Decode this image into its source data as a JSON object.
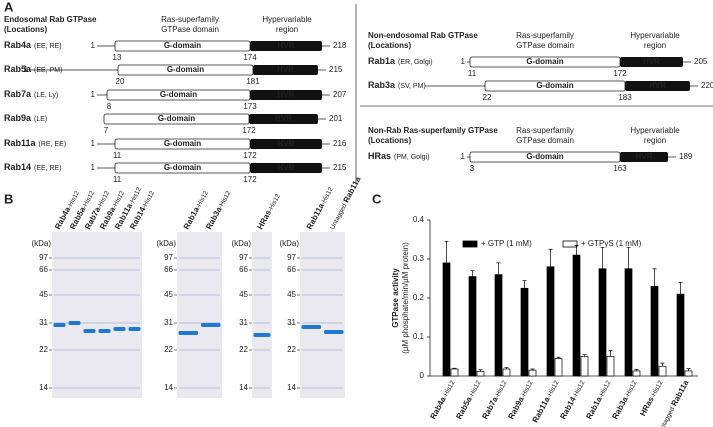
{
  "panel_a": {
    "letter": "A",
    "groups": [
      {
        "title": "Endosomal Rab GTPase",
        "subtitle": "(Locations)",
        "domain_header": [
          "Ras-superfamily",
          "GTPase domain"
        ],
        "hvr_header": [
          "Hypervariable",
          "region"
        ],
        "rows": [
          {
            "name": "Rab4a",
            "locations": "(EE, RE)",
            "start": 1,
            "g_start": 13,
            "g_end": 174,
            "end": 218,
            "g_label": "G-domain",
            "hvr_label": "HVR"
          },
          {
            "name": "Rab5a",
            "locations": "(EE, PM)",
            "start": 1,
            "g_start": 20,
            "g_end": 181,
            "end": 215,
            "g_label": "G-domain",
            "hvr_label": "HVR"
          },
          {
            "name": "Rab7a",
            "locations": "(LE, Ly)",
            "start": 1,
            "g_start": 8,
            "g_end": 173,
            "end": 207,
            "g_label": "G-domain",
            "hvr_label": "HVR"
          },
          {
            "name": "Rab9a",
            "locations": "(LE)",
            "g_start": 7,
            "g_end": 172,
            "end": 201,
            "g_label": "G-domain",
            "hvr_label": "HVR"
          },
          {
            "name": "Rab11a",
            "locations": "(RE, EE)",
            "start": 1,
            "g_start": 11,
            "g_end": 172,
            "end": 216,
            "g_label": "G-domain",
            "hvr_label": "HVR"
          },
          {
            "name": "Rab14",
            "locations": "(EE, RE)",
            "start": 1,
            "g_start": 11,
            "g_end": 172,
            "end": 215,
            "g_label": "G-domain",
            "hvr_label": "HVR"
          }
        ]
      },
      {
        "title": "Non-endosomal Rab GTPase",
        "subtitle": "(Locations)",
        "domain_header": [
          "Ras-superfamily",
          "GTPase domain"
        ],
        "hvr_header": [
          "Hypervariable",
          "region"
        ],
        "rows": [
          {
            "name": "Rab1a",
            "locations": "(ER, Golgi)",
            "start": 1,
            "g_start": 11,
            "g_end": 172,
            "end": 205,
            "g_label": "G-domain",
            "hvr_label": "HVR"
          },
          {
            "name": "Rab3a",
            "locations": "(SV, PM)",
            "g_start": 22,
            "g_end": 183,
            "end": 220,
            "g_label": "G-domain",
            "hvr_label": "HVR"
          }
        ]
      },
      {
        "title": "Non-Rab Ras-superfamily GTPase",
        "subtitle": "(Locations)",
        "domain_header": [
          "Ras-superfamily",
          "GTPase domain"
        ],
        "hvr_header": [
          "Hypervariable",
          "region"
        ],
        "rows": [
          {
            "name": "HRas",
            "locations": "(PM, Golgi)",
            "start": 1,
            "g_start": 3,
            "g_end": 163,
            "end": 189,
            "g_label": "G-domain",
            "hvr_label": "HVR"
          }
        ]
      }
    ]
  },
  "panel_b": {
    "letter": "B",
    "unit": "(kDa)",
    "markers": [
      97,
      66,
      45,
      31,
      22,
      14
    ],
    "gels": [
      {
        "lanes": [
          {
            "name": "Rab4a",
            "tag": "-His12"
          },
          {
            "name": "Rab5a",
            "tag": "-His12"
          },
          {
            "name": "Rab7a",
            "tag": "-His12"
          },
          {
            "name": "Rab9a",
            "tag": "-His12"
          },
          {
            "name": "Rab11a",
            "tag": "-His12"
          },
          {
            "name": "Rab14",
            "tag": "-His12"
          }
        ]
      },
      {
        "lanes": [
          {
            "name": "Rab1a",
            "tag": "-His12"
          },
          {
            "name": "Rab3a",
            "tag": "-His12"
          }
        ]
      },
      {
        "lanes": [
          {
            "name": "HRas",
            "tag": "-His12"
          }
        ]
      },
      {
        "lanes": [
          {
            "name": "Rab11a",
            "tag": "-His12"
          },
          {
            "prefix": "Untagged",
            "name": "Rab11a"
          }
        ]
      }
    ]
  },
  "chart_data": {
    "type": "bar",
    "letter": "C",
    "ylabel": "GTPase activity",
    "ylabel_sub": "(μM phosphate/min/μM protein)",
    "categories": [
      {
        "name": "Rab4a",
        "tag": "-His12"
      },
      {
        "name": "Rab5a",
        "tag": "-His12"
      },
      {
        "name": "Rab7a",
        "tag": "-His12"
      },
      {
        "name": "Rab9a",
        "tag": "-His12"
      },
      {
        "name": "Rab11a",
        "tag": "-His12"
      },
      {
        "name": "Rab14",
        "tag": "-His12"
      },
      {
        "name": "Rab1a",
        "tag": "-His12"
      },
      {
        "name": "Rab3a",
        "tag": "-His12"
      },
      {
        "name": "HRas",
        "tag": "-His12"
      },
      {
        "prefix": "Untagged",
        "name": "Rab11a"
      }
    ],
    "series": [
      {
        "name": "+ GTP (1 mM)",
        "color": "#000000",
        "values": [
          0.29,
          0.255,
          0.26,
          0.225,
          0.28,
          0.31,
          0.275,
          0.275,
          0.23,
          0.21
        ],
        "errors": [
          0.055,
          0.015,
          0.03,
          0.02,
          0.045,
          0.025,
          0.055,
          0.055,
          0.045,
          0.03
        ]
      },
      {
        "name": "+ GTPγS (1 mM)",
        "color": "#ffffff",
        "values": [
          0.018,
          0.012,
          0.018,
          0.015,
          0.045,
          0.05,
          0.05,
          0.013,
          0.025,
          0.013
        ],
        "errors": [
          0.002,
          0.004,
          0.004,
          0.003,
          0.003,
          0.005,
          0.015,
          0.004,
          0.008,
          0.006
        ]
      }
    ],
    "ylim": [
      0,
      0.4
    ],
    "yticks": [
      0,
      0.1,
      0.2,
      0.3,
      0.4
    ]
  }
}
